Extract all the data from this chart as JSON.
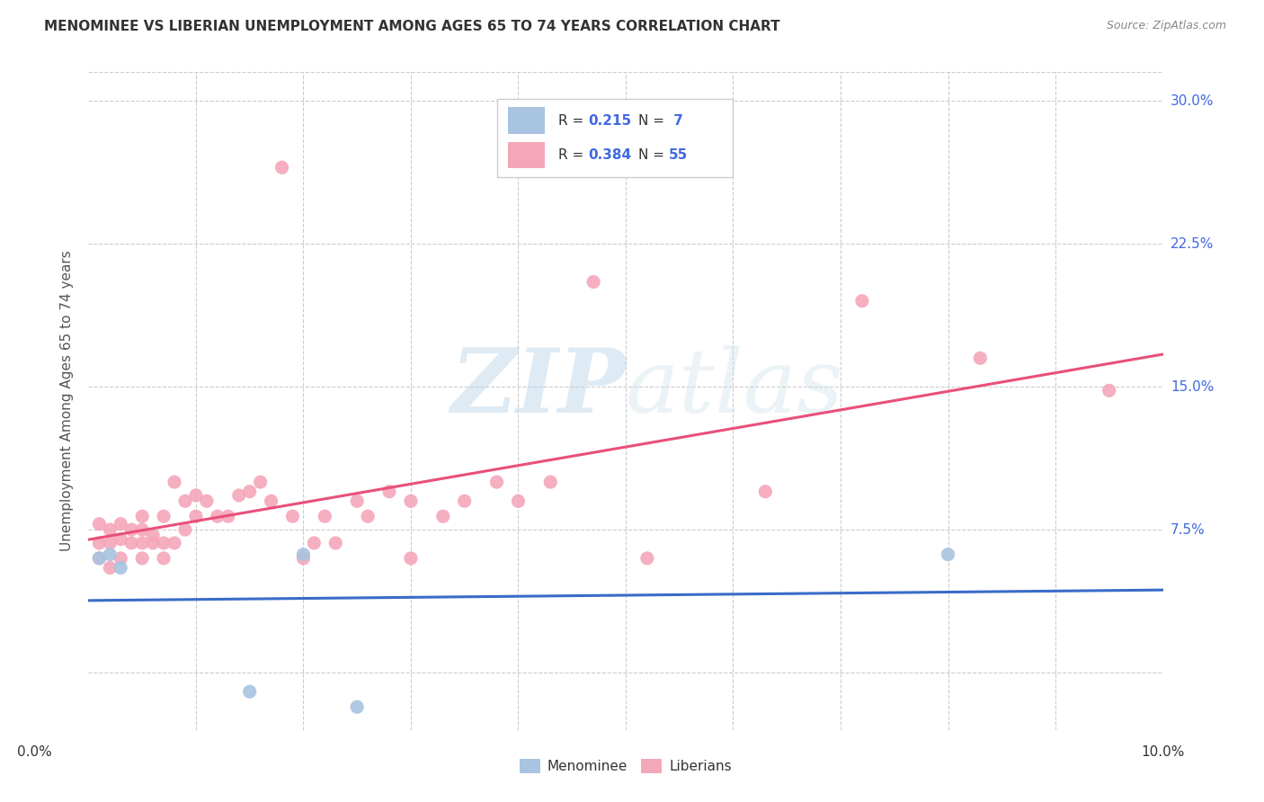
{
  "title": "MENOMINEE VS LIBERIAN UNEMPLOYMENT AMONG AGES 65 TO 74 YEARS CORRELATION CHART",
  "source": "Source: ZipAtlas.com",
  "ylabel": "Unemployment Among Ages 65 to 74 years",
  "xlim": [
    0.0,
    0.1
  ],
  "ylim": [
    -0.03,
    0.315
  ],
  "yticks": [
    0.075,
    0.15,
    0.225,
    0.3
  ],
  "ytick_labels": [
    "7.5%",
    "15.0%",
    "22.5%",
    "30.0%"
  ],
  "menominee_color": "#a8c4e0",
  "liberian_color": "#f4a7b9",
  "menominee_line_color": "#3a6bc9",
  "liberian_line_color": "#e8507a",
  "background_color": "#ffffff",
  "menominee_x": [
    0.001,
    0.002,
    0.003,
    0.015,
    0.02,
    0.025,
    0.08
  ],
  "menominee_y": [
    0.06,
    0.062,
    0.055,
    -0.01,
    0.062,
    -0.018,
    0.062
  ],
  "liberian_x": [
    0.001,
    0.001,
    0.001,
    0.002,
    0.002,
    0.002,
    0.003,
    0.003,
    0.003,
    0.004,
    0.004,
    0.005,
    0.005,
    0.005,
    0.005,
    0.006,
    0.006,
    0.007,
    0.007,
    0.007,
    0.008,
    0.008,
    0.009,
    0.009,
    0.01,
    0.01,
    0.011,
    0.012,
    0.013,
    0.014,
    0.015,
    0.016,
    0.017,
    0.018,
    0.019,
    0.02,
    0.021,
    0.022,
    0.023,
    0.025,
    0.026,
    0.028,
    0.03,
    0.03,
    0.033,
    0.035,
    0.038,
    0.04,
    0.043,
    0.047,
    0.052,
    0.063,
    0.072,
    0.083,
    0.095
  ],
  "liberian_y": [
    0.06,
    0.068,
    0.078,
    0.055,
    0.068,
    0.075,
    0.06,
    0.07,
    0.078,
    0.068,
    0.075,
    0.06,
    0.068,
    0.075,
    0.082,
    0.068,
    0.072,
    0.06,
    0.068,
    0.082,
    0.068,
    0.1,
    0.075,
    0.09,
    0.082,
    0.093,
    0.09,
    0.082,
    0.082,
    0.093,
    0.095,
    0.1,
    0.09,
    0.265,
    0.082,
    0.06,
    0.068,
    0.082,
    0.068,
    0.09,
    0.082,
    0.095,
    0.09,
    0.06,
    0.082,
    0.09,
    0.1,
    0.09,
    0.1,
    0.205,
    0.06,
    0.095,
    0.195,
    0.165,
    0.148
  ]
}
